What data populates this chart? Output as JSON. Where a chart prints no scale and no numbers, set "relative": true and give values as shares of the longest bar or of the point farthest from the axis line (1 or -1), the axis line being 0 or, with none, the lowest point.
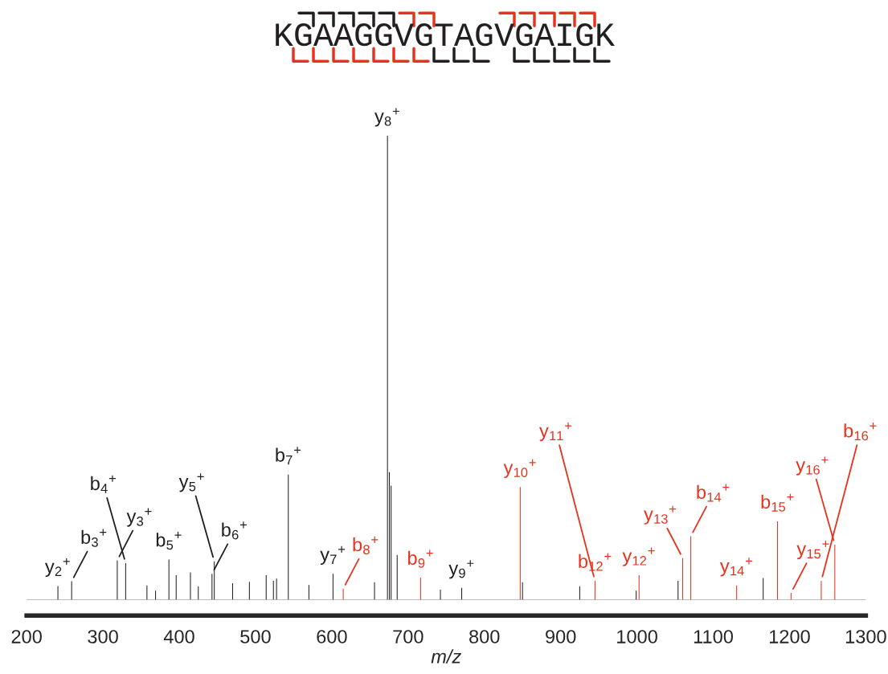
{
  "chart_data": {
    "type": "bar",
    "title": "KGAAGGVGTAGVGAIGK",
    "xlabel": "m/z",
    "relative": true,
    "xlim": [
      200,
      1300
    ],
    "xticks": [
      200,
      300,
      400,
      500,
      600,
      700,
      800,
      900,
      1000,
      1100,
      1200,
      1300
    ],
    "series": [
      {
        "color": "#231f20",
        "x": [
          241,
          259,
          318.8,
          329.8,
          357.7,
          369,
          386.5,
          396,
          414.7,
          425,
          443,
          446,
          470,
          492,
          514,
          523.5,
          527.6,
          543,
          570,
          601.6,
          656,
          673,
          675.5,
          677.8,
          685.7,
          742.4,
          770.3,
          850,
          925,
          999,
          1053.9,
          1165.5
        ],
        "values": [
          0.03,
          0.04,
          0.085,
          0.079,
          0.031,
          0.02,
          0.087,
          0.053,
          0.059,
          0.029,
          0.056,
          0.083,
          0.036,
          0.039,
          0.053,
          0.041,
          0.046,
          0.27,
          0.032,
          0.056,
          0.038,
          1.0,
          0.275,
          0.246,
          0.097,
          0.022,
          0.026,
          0.038,
          0.029,
          0.02,
          0.041,
          0.047
        ]
      },
      {
        "color": "#e8321e",
        "x": [
          615,
          716.4,
          847,
          945,
          1002.8,
          1060,
          1070.6,
          1130.7,
          1184.3,
          1202,
          1241.6,
          1259.4
        ],
        "values": [
          0.024,
          0.048,
          0.243,
          0.041,
          0.053,
          0.09,
          0.137,
          0.031,
          0.169,
          0.015,
          0.041,
          0.119
        ]
      }
    ],
    "annotations": [
      {
        "text": "y$_{2}$$^{+}$",
        "x": 241,
        "y": 0.03
      },
      {
        "text": "b$_{3}$$^{+}$",
        "x": 259,
        "y": 0.04
      },
      {
        "text": "y$_{3}$$^{+}$",
        "x": 318.8,
        "y": 0.085
      },
      {
        "text": "b$_{4}$$^{+}$",
        "x": 329.8,
        "y": 0.079
      },
      {
        "text": "b$_{5}$$^{+}$",
        "x": 386.5,
        "y": 0.087
      },
      {
        "text": "b$_{6}$$^{+}$",
        "x": 443,
        "y": 0.056
      },
      {
        "text": "y$_{5}$$^{+}$",
        "x": 446,
        "y": 0.083
      },
      {
        "text": "b$_{7}$$^{+}$",
        "x": 543,
        "y": 0.27
      },
      {
        "text": "y$_{7}$$^{+}$",
        "x": 601.6,
        "y": 0.056
      },
      {
        "text": "b$_{8}$$^{+}$",
        "x": 615,
        "y": 0.024
      },
      {
        "text": "y$_{8}$$^{+}$",
        "x": 673,
        "y": 1.0
      },
      {
        "text": "b$_{9}$$^{+}$",
        "x": 716.4,
        "y": 0.048
      },
      {
        "text": "y$_{9}$$^{+}$",
        "x": 770.3,
        "y": 0.026
      },
      {
        "text": "y$_{10}$$^{+}$",
        "x": 847,
        "y": 0.243
      },
      {
        "text": "b$_{12}$$^{+}$",
        "x": 945,
        "y": 0.041
      },
      {
        "text": "y$_{11}$$^{+}$",
        "x": 945,
        "y": 0.041
      },
      {
        "text": "y$_{12}$$^{+}$",
        "x": 1002.8,
        "y": 0.053
      },
      {
        "text": "y$_{13}$$^{+}$",
        "x": 1060,
        "y": 0.09
      },
      {
        "text": "b$_{14}$$^{+}$",
        "x": 1070.6,
        "y": 0.137
      },
      {
        "text": "y$_{14}$$^{+}$",
        "x": 1130.7,
        "y": 0.031
      },
      {
        "text": "b$_{15}$$^{+}$",
        "x": 1184.3,
        "y": 0.169
      },
      {
        "text": "y$_{15}$$^{+}$",
        "x": 1202,
        "y": 0.015
      },
      {
        "text": "b$_{16}$$^{+}$",
        "x": 1241.6,
        "y": 0.041
      },
      {
        "text": "y$_{16}$$^{+}$",
        "x": 1259.4,
        "y": 0.119
      }
    ]
  }
}
